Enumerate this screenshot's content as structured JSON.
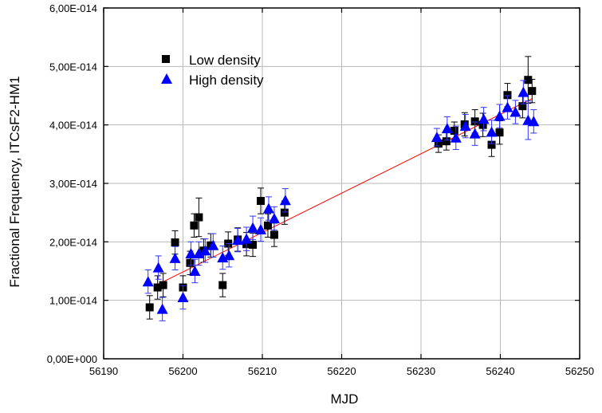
{
  "chart_data": {
    "type": "scatter",
    "xlabel": "MJD",
    "ylabel": "Fractional Frequency,  ITCsF2-HM1",
    "xlim": [
      56190,
      56250
    ],
    "ylim": [
      0,
      6e-14
    ],
    "xticks": [
      56190,
      56200,
      56210,
      56220,
      56230,
      56240,
      56250
    ],
    "xtick_labels": [
      "56190",
      "56200",
      "56210",
      "56220",
      "56230",
      "56240",
      "56250"
    ],
    "yticks": [
      0,
      1e-14,
      2e-14,
      3e-14,
      4e-14,
      5e-14,
      6e-14
    ],
    "ytick_labels": [
      "0,00E+000",
      "1,00E-014",
      "2,00E-014",
      "3,00E-014",
      "4,00E-014",
      "5,00E-014",
      "6,00E-014"
    ],
    "grid": true,
    "legend_position": "top-left",
    "series": [
      {
        "name": "Low density",
        "marker": "square",
        "color": "#000000",
        "error_color": "#000000",
        "points": [
          {
            "x": 56195.8,
            "y": 8.8e-15,
            "err": 2e-15
          },
          {
            "x": 56196.8,
            "y": 1.22e-14,
            "err": 2e-15
          },
          {
            "x": 56197.5,
            "y": 1.26e-14,
            "err": 2e-15
          },
          {
            "x": 56199.0,
            "y": 1.99e-14,
            "err": 2e-15
          },
          {
            "x": 56200.0,
            "y": 1.22e-14,
            "err": 2e-15
          },
          {
            "x": 56200.9,
            "y": 1.64e-14,
            "err": 2e-15
          },
          {
            "x": 56201.4,
            "y": 2.28e-14,
            "err": 2e-15
          },
          {
            "x": 56202.0,
            "y": 2.42e-14,
            "err": 3.3e-15
          },
          {
            "x": 56202.6,
            "y": 1.85e-14,
            "err": 2e-15
          },
          {
            "x": 56203.5,
            "y": 1.94e-14,
            "err": 2e-15
          },
          {
            "x": 56205.0,
            "y": 1.26e-14,
            "err": 2e-15
          },
          {
            "x": 56205.7,
            "y": 1.97e-14,
            "err": 2e-15
          },
          {
            "x": 56206.9,
            "y": 2.04e-14,
            "err": 2e-15
          },
          {
            "x": 56208.0,
            "y": 1.96e-14,
            "err": 2e-15
          },
          {
            "x": 56208.8,
            "y": 1.95e-14,
            "err": 2e-15
          },
          {
            "x": 56209.8,
            "y": 2.7e-14,
            "err": 2.2e-15
          },
          {
            "x": 56210.7,
            "y": 2.28e-14,
            "err": 2e-15
          },
          {
            "x": 56211.5,
            "y": 2.12e-14,
            "err": 2e-15
          },
          {
            "x": 56212.8,
            "y": 2.5e-14,
            "err": 2e-15
          },
          {
            "x": 56232.2,
            "y": 3.68e-14,
            "err": 1.5e-15
          },
          {
            "x": 56233.2,
            "y": 3.72e-14,
            "err": 1.5e-15
          },
          {
            "x": 56234.2,
            "y": 3.9e-14,
            "err": 1.5e-15
          },
          {
            "x": 56235.5,
            "y": 4.01e-14,
            "err": 2e-15
          },
          {
            "x": 56236.8,
            "y": 4.06e-14,
            "err": 2e-15
          },
          {
            "x": 56237.8,
            "y": 4e-14,
            "err": 2e-15
          },
          {
            "x": 56238.9,
            "y": 3.66e-14,
            "err": 2e-15
          },
          {
            "x": 56239.9,
            "y": 3.87e-14,
            "err": 2e-15
          },
          {
            "x": 56240.9,
            "y": 4.51e-14,
            "err": 2e-15
          },
          {
            "x": 56242.8,
            "y": 4.32e-14,
            "err": 2e-15
          },
          {
            "x": 56243.5,
            "y": 4.77e-14,
            "err": 4e-15
          },
          {
            "x": 56244.0,
            "y": 4.58e-14,
            "err": 2e-15
          }
        ]
      },
      {
        "name": "High density",
        "marker": "triangle",
        "color": "#0000ff",
        "error_color": "#3333ff",
        "points": [
          {
            "x": 56195.6,
            "y": 1.32e-14,
            "err": 2e-15
          },
          {
            "x": 56196.9,
            "y": 1.56e-14,
            "err": 2e-15
          },
          {
            "x": 56197.4,
            "y": 8.5e-15,
            "err": 2e-15
          },
          {
            "x": 56199.0,
            "y": 1.72e-14,
            "err": 2e-15
          },
          {
            "x": 56200.0,
            "y": 1.05e-14,
            "err": 2e-15
          },
          {
            "x": 56201.0,
            "y": 1.8e-14,
            "err": 2e-15
          },
          {
            "x": 56201.5,
            "y": 1.5e-14,
            "err": 2e-15
          },
          {
            "x": 56202.0,
            "y": 1.8e-14,
            "err": 2e-15
          },
          {
            "x": 56202.8,
            "y": 1.85e-14,
            "err": 2e-15
          },
          {
            "x": 56203.8,
            "y": 1.94e-14,
            "err": 2e-15
          },
          {
            "x": 56205.0,
            "y": 1.73e-14,
            "err": 2e-15
          },
          {
            "x": 56205.8,
            "y": 1.77e-14,
            "err": 2e-15
          },
          {
            "x": 56206.9,
            "y": 2.03e-14,
            "err": 2e-15
          },
          {
            "x": 56208.0,
            "y": 2.05e-14,
            "err": 2e-15
          },
          {
            "x": 56208.8,
            "y": 2.24e-14,
            "err": 2e-15
          },
          {
            "x": 56209.8,
            "y": 2.21e-14,
            "err": 2e-15
          },
          {
            "x": 56210.8,
            "y": 2.57e-14,
            "err": 2e-15
          },
          {
            "x": 56211.5,
            "y": 2.4e-14,
            "err": 2e-15
          },
          {
            "x": 56212.9,
            "y": 2.71e-14,
            "err": 2e-15
          },
          {
            "x": 56232.0,
            "y": 3.79e-14,
            "err": 1.5e-15
          },
          {
            "x": 56233.3,
            "y": 3.94e-14,
            "err": 2e-15
          },
          {
            "x": 56234.4,
            "y": 3.78e-14,
            "err": 2e-15
          },
          {
            "x": 56235.6,
            "y": 3.98e-14,
            "err": 2e-15
          },
          {
            "x": 56236.8,
            "y": 3.85e-14,
            "err": 2e-15
          },
          {
            "x": 56237.9,
            "y": 4.1e-14,
            "err": 2e-15
          },
          {
            "x": 56238.9,
            "y": 3.88e-14,
            "err": 2e-15
          },
          {
            "x": 56239.9,
            "y": 4.15e-14,
            "err": 2e-15
          },
          {
            "x": 56240.9,
            "y": 4.3e-14,
            "err": 2e-15
          },
          {
            "x": 56241.9,
            "y": 4.22e-14,
            "err": 2e-15
          },
          {
            "x": 56242.9,
            "y": 4.56e-14,
            "err": 2e-15
          },
          {
            "x": 56243.5,
            "y": 4.08e-14,
            "err": 3.3e-15
          },
          {
            "x": 56244.2,
            "y": 4.06e-14,
            "err": 2e-15
          }
        ]
      }
    ],
    "fit_line": {
      "color": "#ff0000",
      "x": [
        56196.5,
        56244.0
      ],
      "y": [
        1.25e-14,
        4.45e-14
      ]
    }
  }
}
